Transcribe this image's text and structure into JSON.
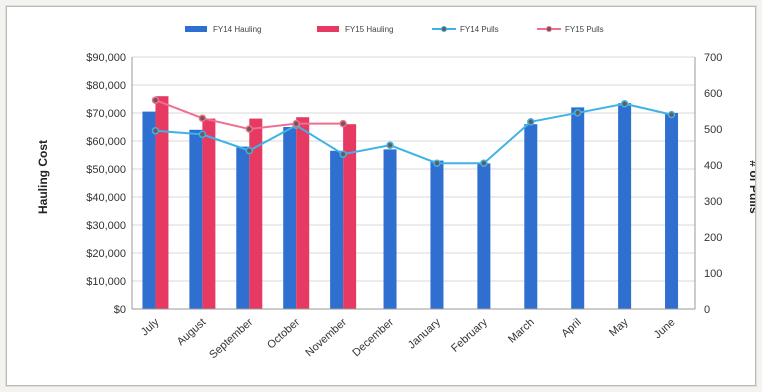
{
  "chart_data": {
    "type": "bar",
    "categories": [
      "July",
      "August",
      "September",
      "October",
      "November",
      "December",
      "January",
      "February",
      "March",
      "April",
      "May",
      "June"
    ],
    "series": [
      {
        "name": "FY14 Hauling",
        "kind": "bar",
        "axis": "left",
        "color": "#2f6fd0",
        "values": [
          70500,
          64000,
          58000,
          65000,
          56500,
          57000,
          53000,
          52000,
          66000,
          72000,
          73500,
          70000
        ]
      },
      {
        "name": "FY15 Hauling",
        "kind": "bar",
        "axis": "left",
        "color": "#e63a62",
        "values": [
          76000,
          68000,
          68000,
          68500,
          66000,
          null,
          null,
          null,
          null,
          null,
          null,
          null
        ]
      },
      {
        "name": "FY14 Pulls",
        "kind": "line",
        "axis": "right",
        "color": "#3fb3e6",
        "values": [
          495,
          485,
          440,
          510,
          430,
          455,
          405,
          405,
          520,
          545,
          570,
          540
        ]
      },
      {
        "name": "FY15 Pulls",
        "kind": "line",
        "axis": "right",
        "color": "#ee6f8e",
        "values": [
          580,
          530,
          500,
          515,
          515,
          null,
          null,
          null,
          null,
          null,
          null,
          null
        ]
      }
    ],
    "ylabel": "Hauling Cost",
    "y2label": "# of Pulls",
    "ylim": [
      0,
      90000
    ],
    "y2lim": [
      0,
      700
    ],
    "yticks": [
      "$0",
      "$10,000",
      "$20,000",
      "$30,000",
      "$40,000",
      "$50,000",
      "$60,000",
      "$70,000",
      "$80,000",
      "$90,000"
    ],
    "y2ticks": [
      "0",
      "100",
      "200",
      "300",
      "400",
      "500",
      "600",
      "700"
    ],
    "legend_position": "top",
    "grid": true
  }
}
